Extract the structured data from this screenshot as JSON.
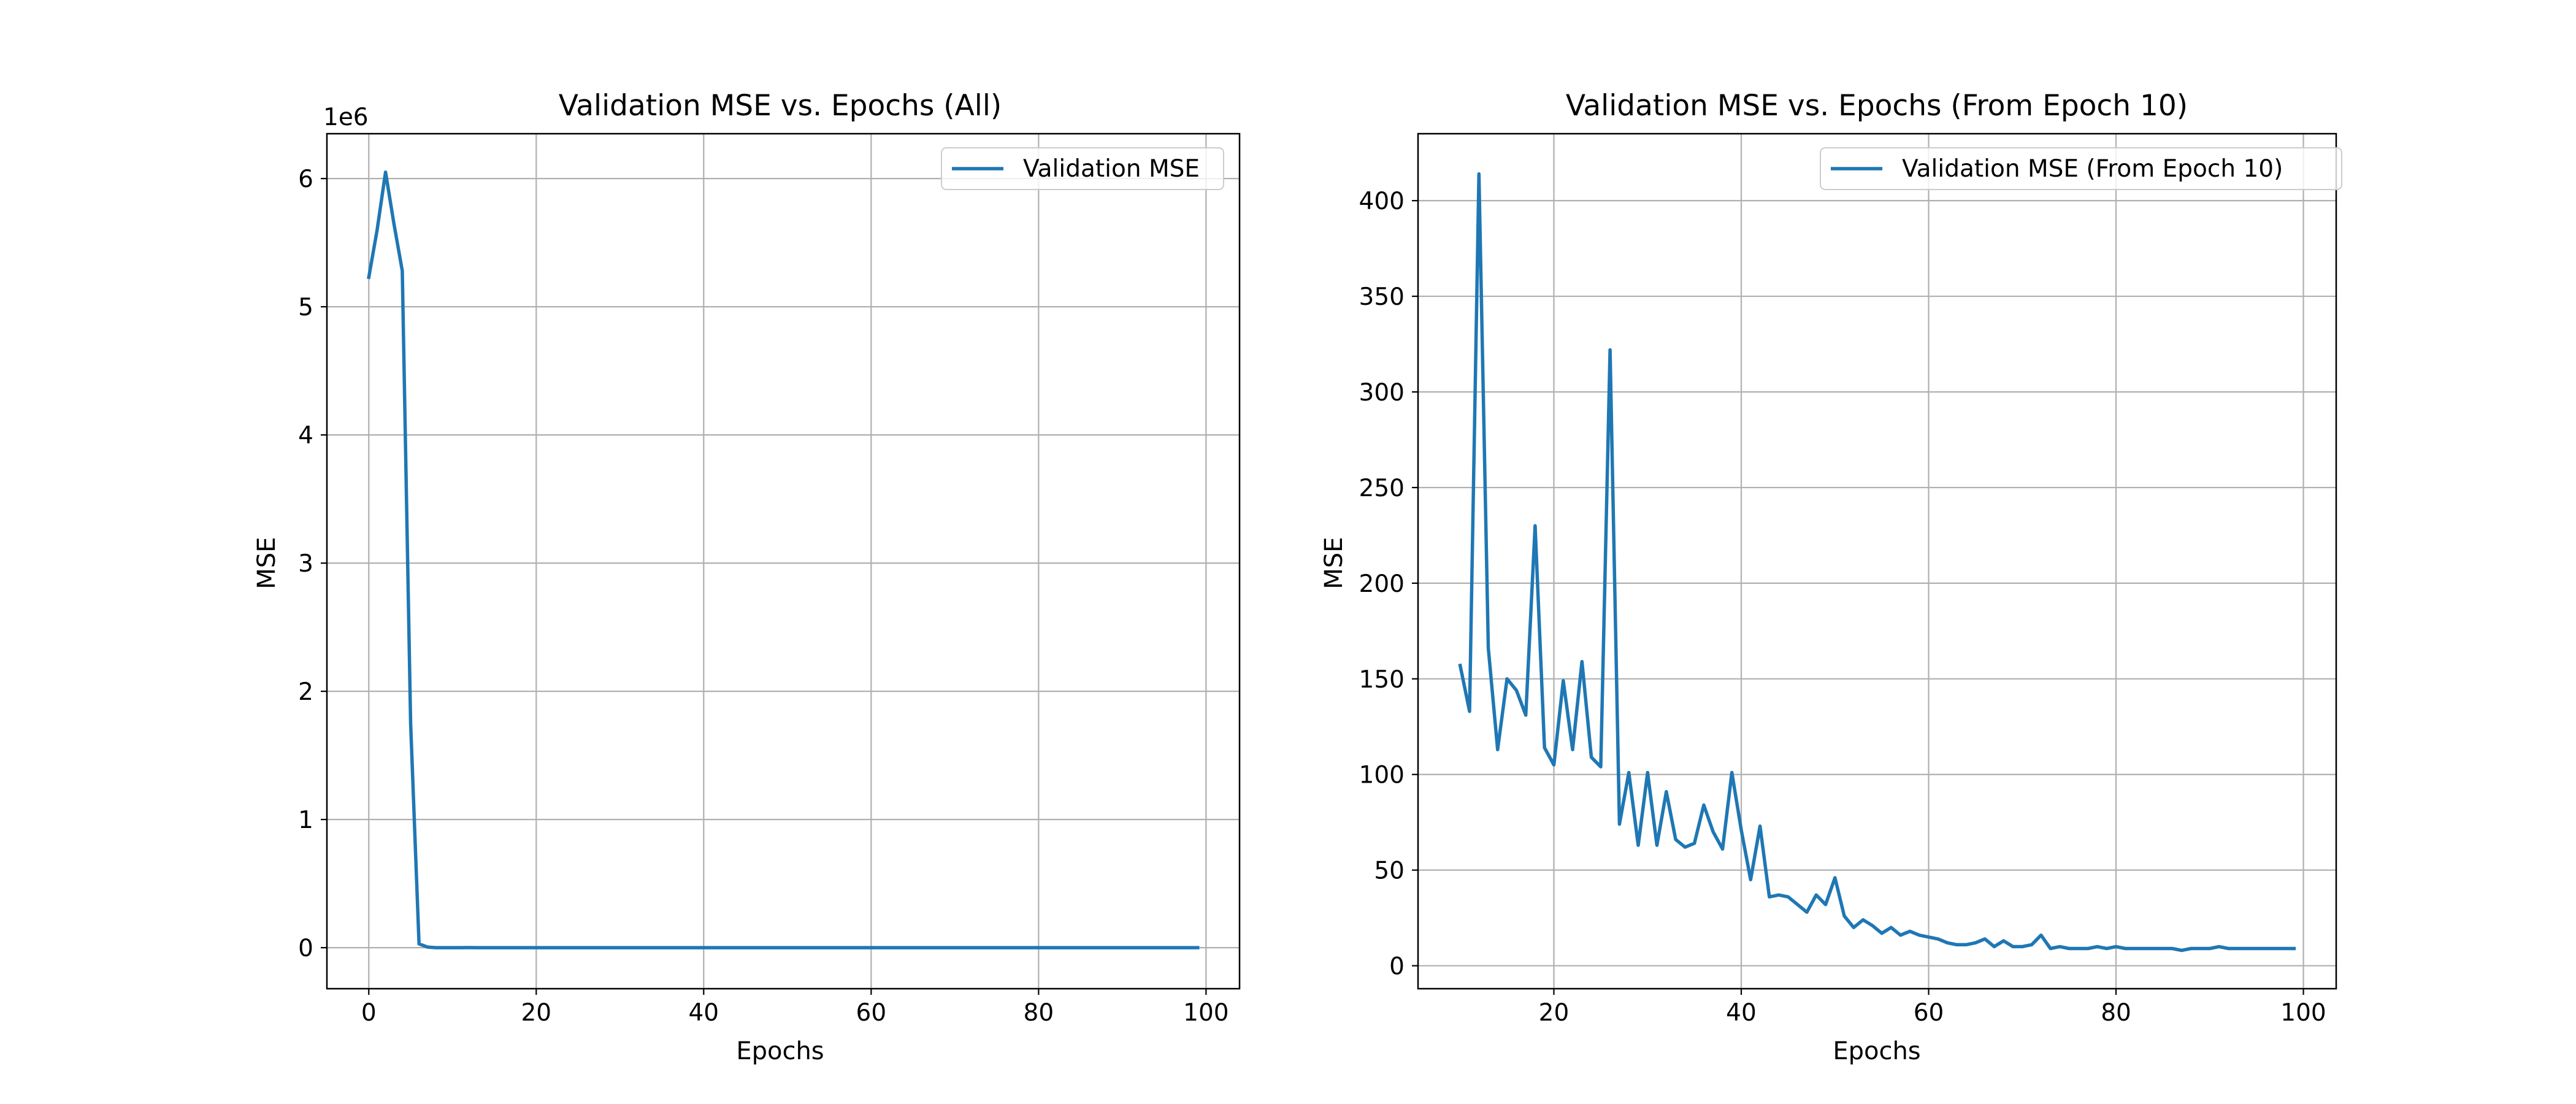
{
  "chart_data": [
    {
      "type": "line",
      "title": "Validation MSE vs. Epochs (All)",
      "xlabel": "Epochs",
      "ylabel": "MSE",
      "y_offset_label": "1e6",
      "x_tick_labels": [
        "0",
        "20",
        "40",
        "60",
        "80",
        "100"
      ],
      "y_tick_labels": [
        "0",
        "1",
        "2",
        "3",
        "4",
        "5",
        "6"
      ],
      "xlim": [
        -5,
        104
      ],
      "ylim": [
        -320000,
        6350000
      ],
      "x_ticks": [
        0,
        20,
        40,
        60,
        80,
        100
      ],
      "y_ticks": [
        0,
        1000000,
        2000000,
        3000000,
        4000000,
        5000000,
        6000000
      ],
      "grid": true,
      "legend_position": "top-right",
      "series": [
        {
          "name": "Validation MSE",
          "color": "#1f77b4",
          "x": [
            0,
            1,
            2,
            3,
            4,
            5,
            6,
            7,
            8,
            9,
            10,
            11,
            12,
            13,
            14,
            15,
            16,
            17,
            18,
            19,
            20,
            21,
            22,
            23,
            24,
            25,
            26,
            27,
            28,
            29,
            30,
            31,
            32,
            33,
            34,
            35,
            36,
            37,
            38,
            39,
            40,
            41,
            42,
            43,
            44,
            45,
            46,
            47,
            48,
            49,
            50,
            51,
            52,
            53,
            54,
            55,
            56,
            57,
            58,
            59,
            60,
            61,
            62,
            63,
            64,
            65,
            66,
            67,
            68,
            69,
            70,
            71,
            72,
            73,
            74,
            75,
            76,
            77,
            78,
            79,
            80,
            81,
            82,
            83,
            84,
            85,
            86,
            87,
            88,
            89,
            90,
            91,
            92,
            93,
            94,
            95,
            96,
            97,
            98,
            99
          ],
          "values": [
            5230000,
            5600000,
            6050000,
            5650000,
            5280000,
            1750000,
            30000,
            5000,
            300,
            200,
            157,
            133,
            414,
            166,
            113,
            150,
            144,
            131,
            230,
            114,
            105,
            149,
            113,
            159,
            109,
            104,
            322,
            74,
            101,
            63,
            101,
            63,
            91,
            66,
            62,
            64,
            84,
            70,
            61,
            101,
            71,
            45,
            73,
            36,
            37,
            36,
            32,
            28,
            37,
            32,
            46,
            26,
            20,
            24,
            21,
            17,
            20,
            16,
            18,
            16,
            15,
            14,
            12,
            11,
            11,
            12,
            14,
            10,
            13,
            10,
            10,
            11,
            16,
            9,
            10,
            9,
            9,
            9,
            10,
            9,
            10,
            9,
            9,
            9,
            9,
            9,
            9,
            8,
            9,
            9,
            9,
            10,
            9,
            9,
            9,
            9,
            9,
            9,
            9,
            9
          ]
        }
      ]
    },
    {
      "type": "line",
      "title": "Validation MSE vs. Epochs (From Epoch 10)",
      "xlabel": "Epochs",
      "ylabel": "MSE",
      "x_tick_labels": [
        "20",
        "40",
        "60",
        "80",
        "100"
      ],
      "y_tick_labels": [
        "0",
        "50",
        "100",
        "150",
        "200",
        "250",
        "300",
        "350",
        "400"
      ],
      "xlim": [
        5.5,
        103.5
      ],
      "ylim": [
        -12,
        435
      ],
      "x_ticks": [
        20,
        40,
        60,
        80,
        100
      ],
      "y_ticks": [
        0,
        50,
        100,
        150,
        200,
        250,
        300,
        350,
        400
      ],
      "grid": true,
      "legend_position": "top-right",
      "series": [
        {
          "name": "Validation MSE (From Epoch 10)",
          "color": "#1f77b4",
          "x": [
            10,
            11,
            12,
            13,
            14,
            15,
            16,
            17,
            18,
            19,
            20,
            21,
            22,
            23,
            24,
            25,
            26,
            27,
            28,
            29,
            30,
            31,
            32,
            33,
            34,
            35,
            36,
            37,
            38,
            39,
            40,
            41,
            42,
            43,
            44,
            45,
            46,
            47,
            48,
            49,
            50,
            51,
            52,
            53,
            54,
            55,
            56,
            57,
            58,
            59,
            60,
            61,
            62,
            63,
            64,
            65,
            66,
            67,
            68,
            69,
            70,
            71,
            72,
            73,
            74,
            75,
            76,
            77,
            78,
            79,
            80,
            81,
            82,
            83,
            84,
            85,
            86,
            87,
            88,
            89,
            90,
            91,
            92,
            93,
            94,
            95,
            96,
            97,
            98,
            99
          ],
          "values": [
            157,
            133,
            414,
            166,
            113,
            150,
            144,
            131,
            230,
            114,
            105,
            149,
            113,
            159,
            109,
            104,
            322,
            74,
            101,
            63,
            101,
            63,
            91,
            66,
            62,
            64,
            84,
            70,
            61,
            101,
            71,
            45,
            73,
            36,
            37,
            36,
            32,
            28,
            37,
            32,
            46,
            26,
            20,
            24,
            21,
            17,
            20,
            16,
            18,
            16,
            15,
            14,
            12,
            11,
            11,
            12,
            14,
            10,
            13,
            10,
            10,
            11,
            16,
            9,
            10,
            9,
            9,
            9,
            10,
            9,
            10,
            9,
            9,
            9,
            9,
            9,
            9,
            8,
            9,
            9,
            9,
            10,
            9,
            9,
            9,
            9,
            9,
            9,
            9,
            9
          ]
        }
      ]
    }
  ]
}
